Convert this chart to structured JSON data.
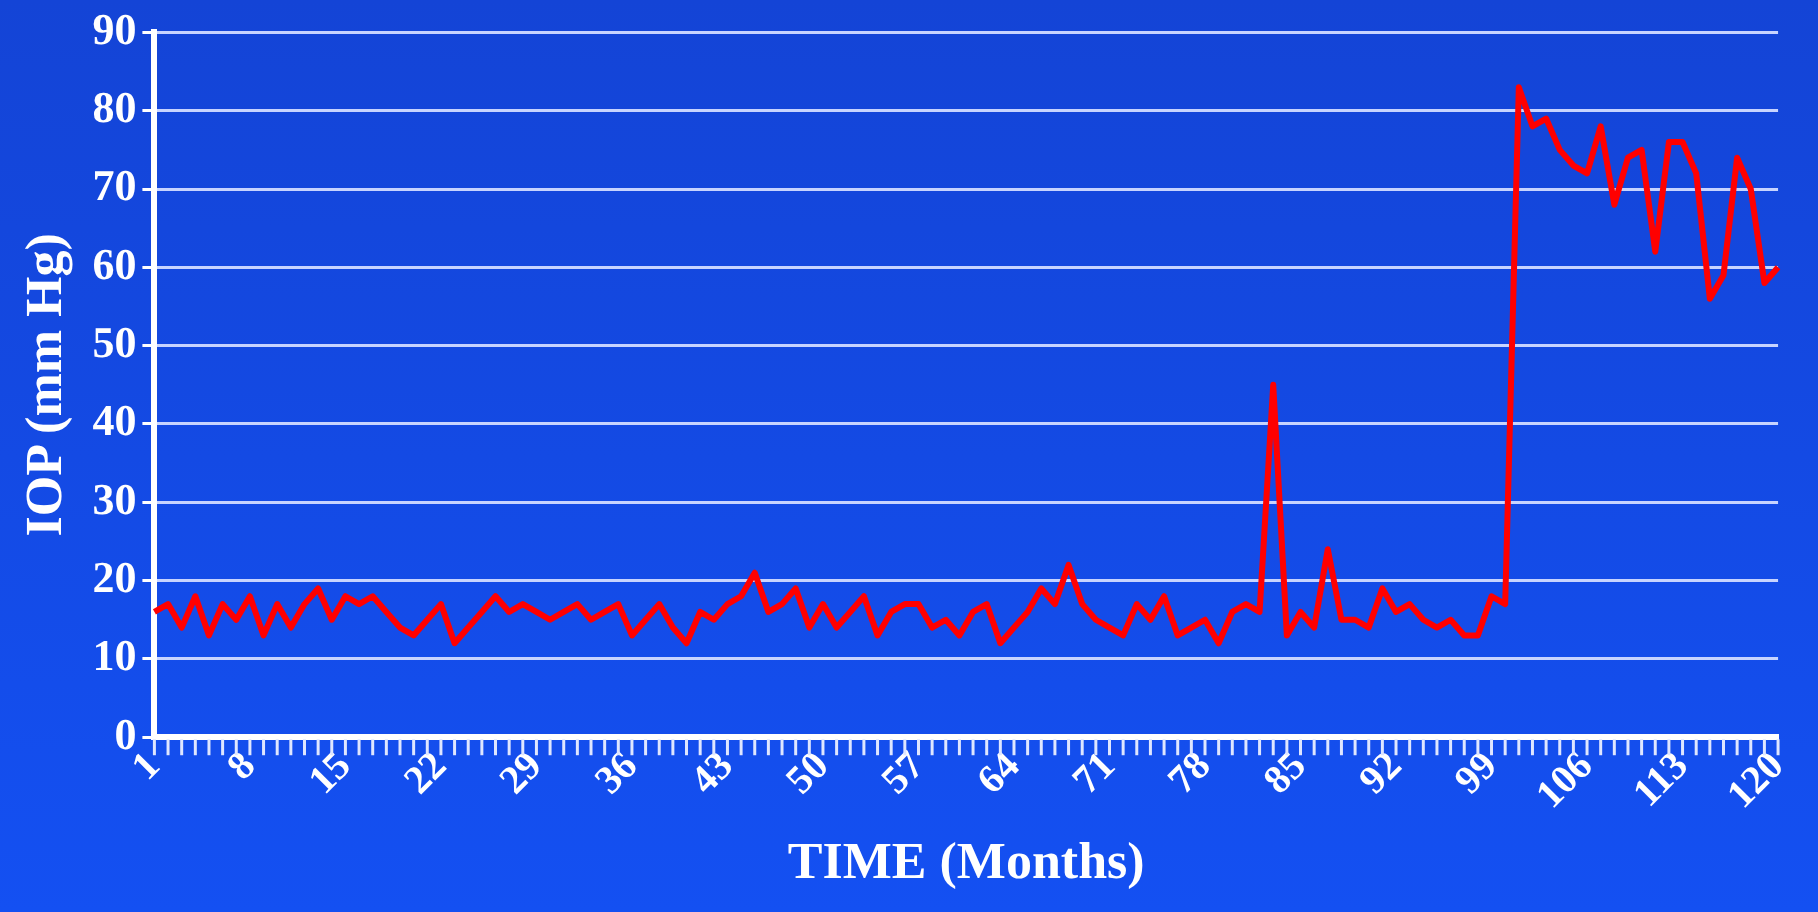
{
  "chart_data": {
    "type": "line",
    "xlabel": "TIME (Months)",
    "ylabel": "IOP (mm Hg)",
    "categories": [
      "1",
      null,
      null,
      null,
      null,
      null,
      null,
      "8",
      null,
      null,
      null,
      null,
      null,
      null,
      "15",
      null,
      null,
      null,
      null,
      null,
      null,
      "22",
      null,
      null,
      null,
      null,
      null,
      null,
      "29",
      null,
      null,
      null,
      null,
      null,
      null,
      "36",
      null,
      null,
      null,
      null,
      null,
      null,
      "43",
      null,
      null,
      null,
      null,
      null,
      null,
      "50",
      null,
      null,
      null,
      null,
      null,
      null,
      "57",
      null,
      null,
      null,
      null,
      null,
      null,
      "64",
      null,
      null,
      null,
      null,
      null,
      null,
      "71",
      null,
      null,
      null,
      null,
      null,
      null,
      "78",
      null,
      null,
      null,
      null,
      null,
      null,
      "85",
      null,
      null,
      null,
      null,
      null,
      null,
      "92",
      null,
      null,
      null,
      null,
      null,
      null,
      "99",
      null,
      null,
      null,
      null,
      null,
      null,
      "106",
      null,
      null,
      null,
      null,
      null,
      null,
      "113",
      null,
      null,
      null,
      null,
      null,
      null,
      "120"
    ],
    "series": [
      {
        "color": "#ff0000",
        "values": [
          16,
          17,
          14,
          18,
          13,
          17,
          15,
          18,
          13,
          17,
          14,
          17,
          19,
          15,
          18,
          17,
          18,
          16,
          14,
          13,
          15,
          17,
          12,
          14,
          16,
          18,
          16,
          17,
          16,
          15,
          16,
          17,
          15,
          16,
          17,
          13,
          15,
          17,
          14,
          12,
          16,
          15,
          17,
          18,
          21,
          16,
          17,
          19,
          14,
          17,
          14,
          16,
          18,
          13,
          16,
          17,
          17,
          14,
          15,
          13,
          16,
          17,
          12,
          14,
          16,
          19,
          17,
          22,
          17,
          15,
          14,
          13,
          17,
          15,
          18,
          13,
          14,
          15,
          12,
          16,
          17,
          16,
          45,
          13,
          16,
          14,
          24,
          15,
          15,
          14,
          19,
          16,
          17,
          15,
          14,
          15,
          13,
          13,
          18,
          17,
          83,
          78,
          79,
          75,
          73,
          72,
          78,
          68,
          74,
          75,
          62,
          76,
          76,
          72,
          56,
          59,
          74,
          70,
          58,
          60
        ]
      }
    ],
    "ylim": [
      0,
      90
    ],
    "yticks": [
      0,
      10,
      20,
      30,
      40,
      50,
      60,
      70,
      80,
      90
    ],
    "grid": "y",
    "legend": false,
    "marker": "none",
    "line_style": "solid"
  }
}
